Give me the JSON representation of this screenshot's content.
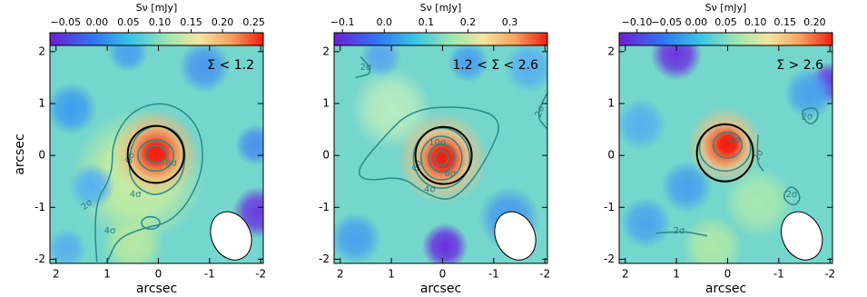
{
  "chart_data": [
    {
      "type": "heatmap",
      "title": "Σ < 1.2",
      "colorbar_label": "Sν [mJy]",
      "clim": [
        -0.075,
        0.265
      ],
      "cticks": [
        {
          "value": -0.05,
          "label": "−0.05"
        },
        {
          "value": 0,
          "label": "0.00"
        },
        {
          "value": 0.05,
          "label": "0.05"
        },
        {
          "value": 0.1,
          "label": "0.10"
        },
        {
          "value": 0.15,
          "label": "0.15"
        },
        {
          "value": 0.2,
          "label": "0.20"
        },
        {
          "value": 0.25,
          "label": "0.25"
        }
      ],
      "xlim": [
        2.12,
        -2.05
      ],
      "ylim": [
        -2.08,
        2.12
      ],
      "xticks": [
        2,
        1,
        0,
        -1,
        -2
      ],
      "yticks": [
        -2,
        -1,
        0,
        1,
        2
      ],
      "xlabel": "arcsec",
      "ylabel": "arcsec",
      "annotations": [
        "2σ",
        "4σ",
        "4σ",
        "6σ",
        "8σ"
      ]
    },
    {
      "type": "heatmap",
      "title": "1.2 < Σ < 2.6",
      "colorbar_label": "Sν [mJy]",
      "clim": [
        -0.12,
        0.39
      ],
      "cticks": [
        {
          "value": -0.1,
          "label": "−0.1"
        },
        {
          "value": 0,
          "label": "0.0"
        },
        0.1,
        0.2,
        0.3
      ],
      "xlim": [
        2.12,
        -2.05
      ],
      "ylim": [
        -2.08,
        2.12
      ],
      "xticks": [
        2,
        1,
        0,
        -1,
        -2
      ],
      "yticks": [
        -2,
        -1,
        0,
        1,
        2
      ],
      "xlabel": "arcsec",
      "annotations": [
        "2σ",
        "2σ",
        "4σ",
        "6σ",
        "8σ",
        "10σ"
      ]
    },
    {
      "type": "heatmap",
      "title": "Σ > 2.6",
      "colorbar_label": "Sν [mJy]",
      "clim": [
        -0.13,
        0.23
      ],
      "cticks": [
        {
          "value": -0.1,
          "label": "−0.10"
        },
        {
          "value": -0.05,
          "label": "−0.05"
        },
        {
          "value": 0,
          "label": "0.00"
        },
        {
          "value": 0.05,
          "label": "0.05"
        },
        {
          "value": 0.1,
          "label": "0.10"
        },
        {
          "value": 0.15,
          "label": "0.15"
        },
        {
          "value": 0.2,
          "label": "0.20"
        }
      ],
      "xlim": [
        2.12,
        -2.05
      ],
      "ylim": [
        -2.08,
        2.12
      ],
      "xticks": [
        2,
        1,
        0,
        -1,
        -2
      ],
      "yticks": [
        -2,
        -1,
        0,
        1,
        2
      ],
      "xlabel": "arcsec",
      "annotations": [
        "2σ",
        "2σ",
        "2σ",
        "2σ",
        "4σ"
      ]
    }
  ]
}
